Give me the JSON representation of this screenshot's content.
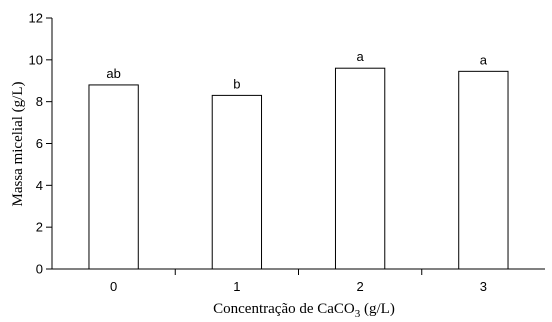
{
  "chart_data": {
    "type": "bar",
    "title": "",
    "xlabel_main": "Concentração de CaCO",
    "xlabel_sub": "3",
    "xlabel_unit": " (g/L)",
    "ylabel": "Massa micelial (g/L)",
    "categories": [
      "0",
      "1",
      "2",
      "3"
    ],
    "values": [
      8.8,
      8.3,
      9.6,
      9.45
    ],
    "significance_letters": [
      "ab",
      "b",
      "a",
      "a"
    ],
    "ylim": [
      0,
      12
    ],
    "yticks": [
      "0",
      "2",
      "4",
      "6",
      "8",
      "10",
      "12"
    ],
    "grid": false,
    "legend": "none",
    "bar_fill": "#ffffff",
    "bar_stroke": "#000000"
  }
}
